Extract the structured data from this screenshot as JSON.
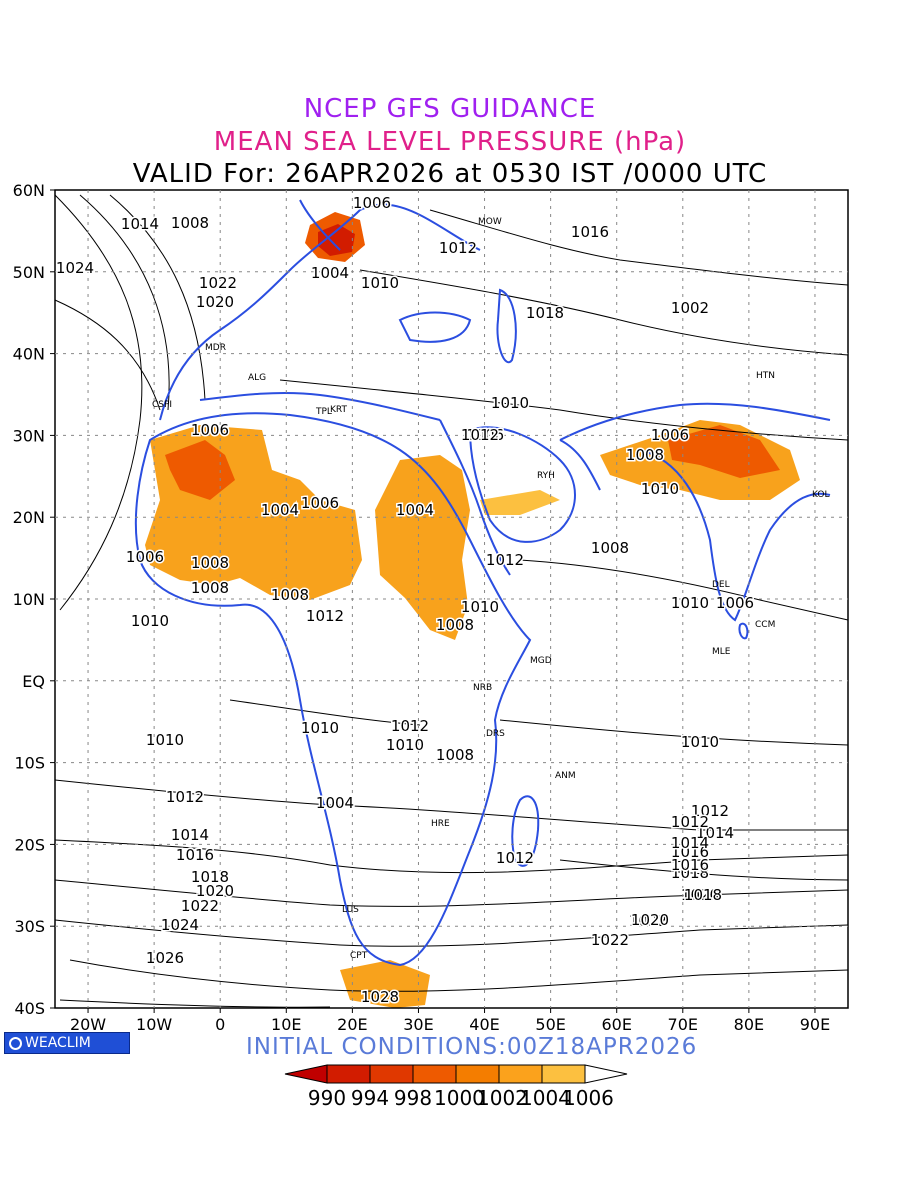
{
  "titles": {
    "line1": "NCEP GFS GUIDANCE",
    "line2": "MEAN SEA LEVEL PRESSURE (hPa)",
    "line3": "VALID For: 26APR2026 at 0530 IST /0000 UTC"
  },
  "initial_conditions": "INITIAL CONDITIONS:00Z18APR2026",
  "logo_text": "WEACLIM",
  "lat_labels": [
    "60N",
    "50N",
    "40N",
    "30N",
    "20N",
    "10N",
    "EQ",
    "10S",
    "20S",
    "30S",
    "40S"
  ],
  "lon_labels": [
    "20W",
    "10W",
    "0",
    "10E",
    "20E",
    "30E",
    "40E",
    "50E",
    "60E",
    "70E",
    "80E",
    "90E"
  ],
  "colorbar": {
    "labels": [
      "990",
      "994",
      "998",
      "1000",
      "1002",
      "1004",
      "1006"
    ],
    "colors": [
      "#c00000",
      "#d21c00",
      "#e03800",
      "#ee5a00",
      "#f47d00",
      "#fba21c",
      "#fcc040"
    ]
  },
  "contour_labels": [
    "1006",
    "1008",
    "1016",
    "1014",
    "1024",
    "1022",
    "1020",
    "1004",
    "1010",
    "1012",
    "1018",
    "1002",
    "1006",
    "1004",
    "1008",
    "1006",
    "1004",
    "1008",
    "1006",
    "1010",
    "1008",
    "1012",
    "1010",
    "1012",
    "1008",
    "1006",
    "1006",
    "1008",
    "1010",
    "1010",
    "1012",
    "1010",
    "1006",
    "1008",
    "1010",
    "1012",
    "1014",
    "1016",
    "1018",
    "1020",
    "1022",
    "1024",
    "1026",
    "1028",
    "1004",
    "1012",
    "1010",
    "1008",
    "1012",
    "1014",
    "1016",
    "1018",
    "1020",
    "1022",
    "1010",
    "1012",
    "1014",
    "1016",
    "1018",
    "1020",
    "1022",
    "1012",
    "1010"
  ],
  "station_codes": [
    "MOW",
    "ALG",
    "MDR",
    "RYH",
    "DEL",
    "HTN",
    "KRT",
    "TPL",
    "CSPI",
    "NRB",
    "MGD",
    "MLE",
    "CCM",
    "DRS",
    "ANM",
    "HRE",
    "LUS",
    "CPT",
    "KOL"
  ]
}
